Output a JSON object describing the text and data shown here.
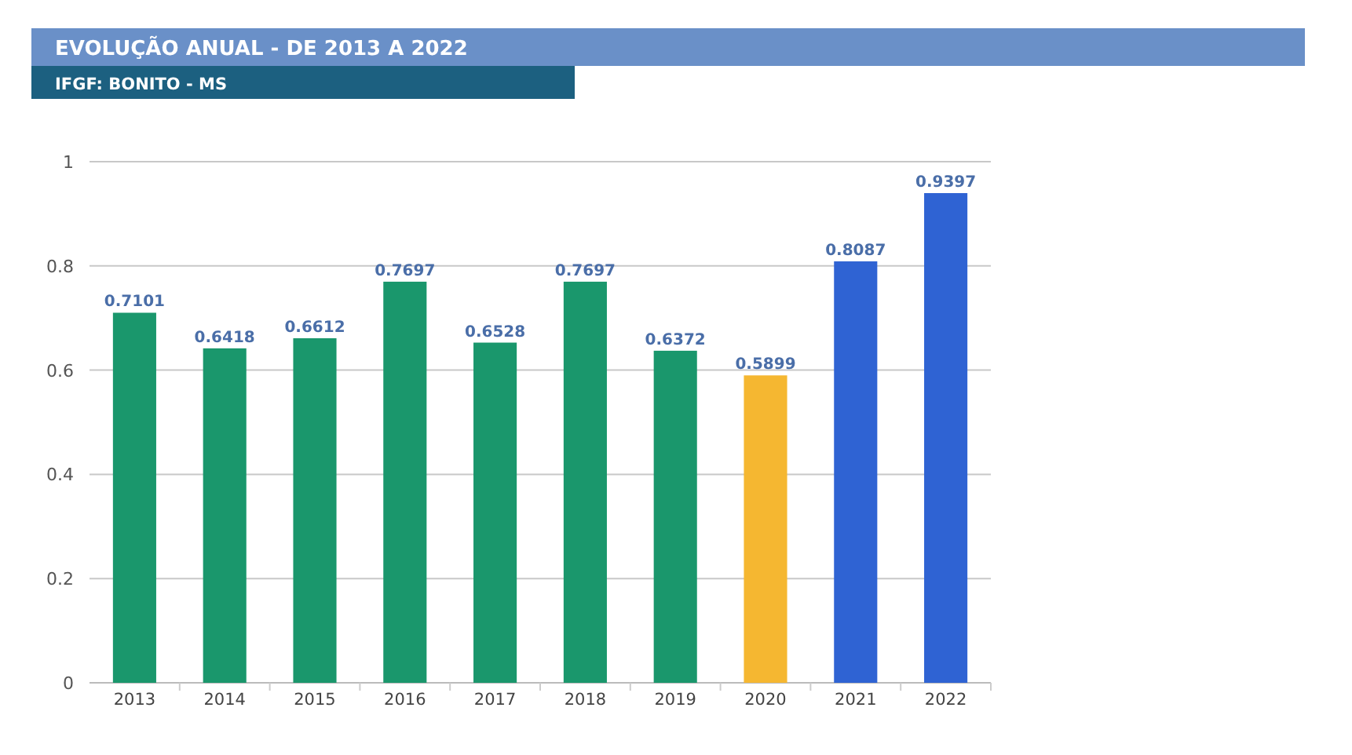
{
  "chart_data": {
    "type": "bar",
    "title": "EVOLUÇÃO ANUAL - DE 2013 A 2022",
    "subtitle": "IFGF: BONITO - MS",
    "categories": [
      "2013",
      "2014",
      "2015",
      "2016",
      "2017",
      "2018",
      "2019",
      "2020",
      "2021",
      "2022"
    ],
    "values": [
      0.7101,
      0.6418,
      0.6612,
      0.7697,
      0.6528,
      0.7697,
      0.6372,
      0.5899,
      0.8087,
      0.9397
    ],
    "colors": [
      "#1a976c",
      "#1a976c",
      "#1a976c",
      "#1a976c",
      "#1a976c",
      "#1a976c",
      "#1a976c",
      "#f5b731",
      "#2f63d3",
      "#2f63d3"
    ],
    "ylim": [
      0,
      1
    ],
    "yticks": [
      0,
      0.2,
      0.4,
      0.6,
      0.8,
      1
    ],
    "grid": "y",
    "data_labels": true
  }
}
